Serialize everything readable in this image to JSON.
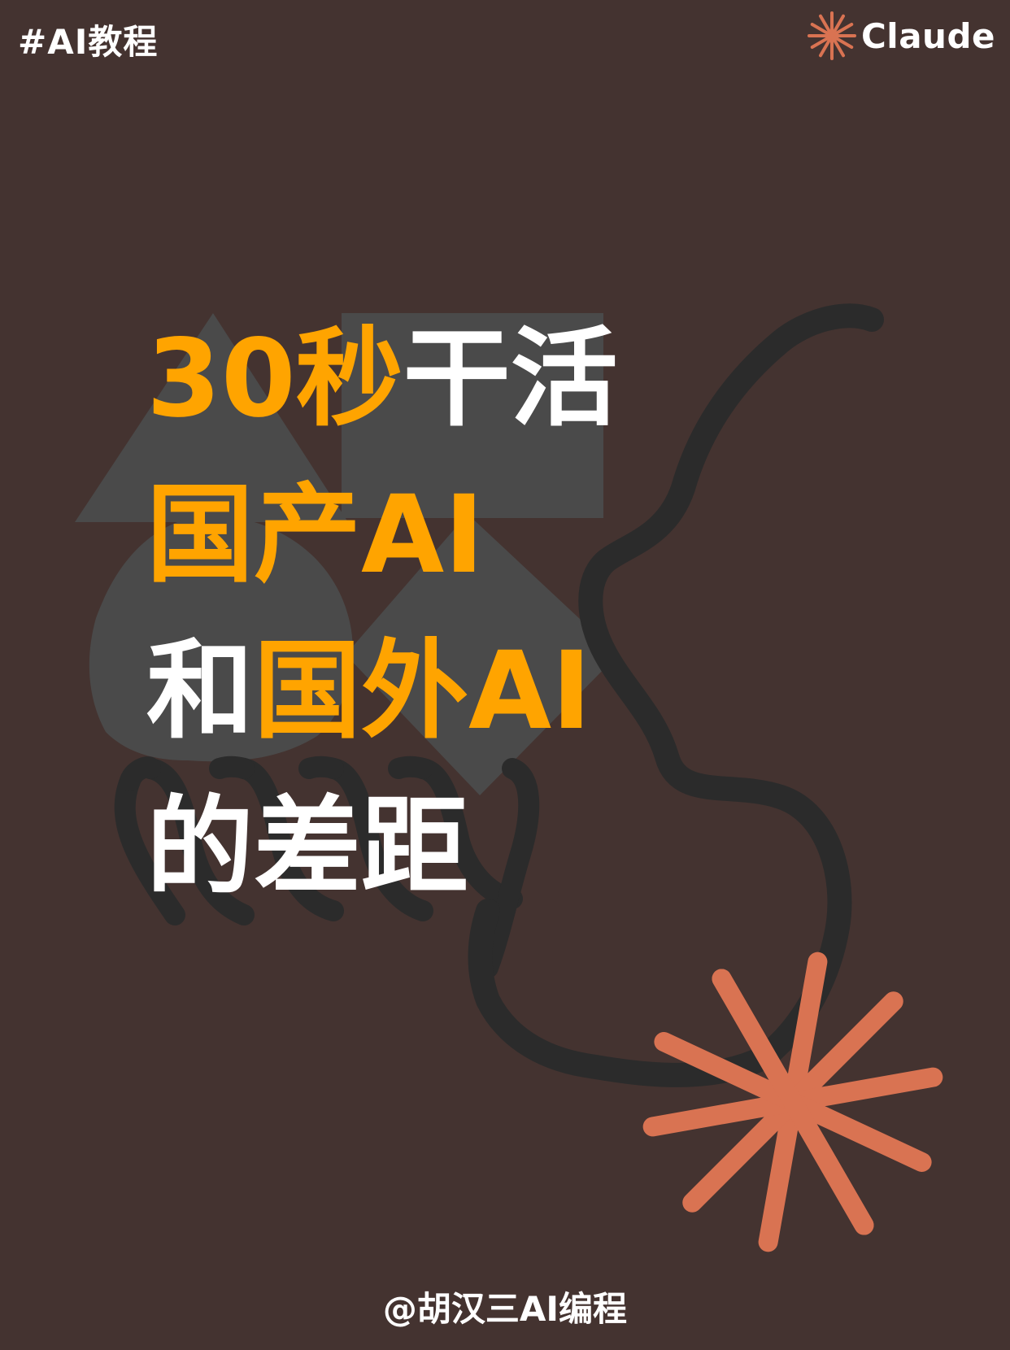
{
  "header": {
    "tag": "#AI教程",
    "brand_name": "Claude",
    "brand_logo_icon": "sunburst-icon"
  },
  "title": {
    "line1_highlight": "30秒",
    "line1_rest": "干活",
    "line2_highlight": "国产AI",
    "line3_prefix": "和",
    "line3_highlight": "国外AI",
    "line4": "的差距"
  },
  "footer": {
    "author": "@胡汉三AI编程"
  },
  "colors": {
    "background": "#443330",
    "highlight": "#FFA400",
    "text": "#FFFFFF",
    "accent_star": "#D97352",
    "shape_gray": "#4A4A4A",
    "line_dark": "#2B2B2B"
  }
}
